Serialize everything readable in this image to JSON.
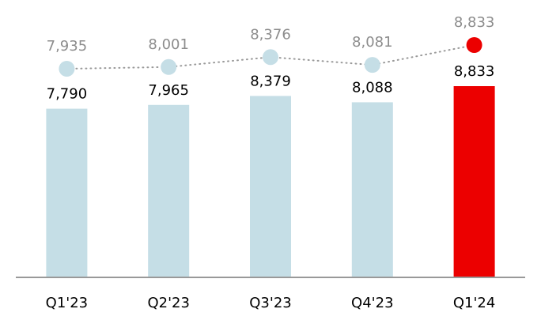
{
  "chart_data": {
    "type": "bar-line",
    "categories": [
      "Q1'23",
      "Q2'23",
      "Q3'23",
      "Q4'23",
      "Q1'24"
    ],
    "series": [
      {
        "type": "bar",
        "values": [
          7790,
          7965,
          8379,
          8088,
          8833
        ],
        "value_labels": [
          "7,790",
          "7,965",
          "8,379",
          "8,088",
          "8,833"
        ],
        "colors": [
          "#c5dee6",
          "#c5dee6",
          "#c5dee6",
          "#c5dee6",
          "#ec0000"
        ]
      },
      {
        "type": "line",
        "values": [
          7935,
          8001,
          8376,
          8081,
          8833
        ],
        "value_labels": [
          "7,935",
          "8,001",
          "8,376",
          "8,081",
          "8,833"
        ],
        "colors": [
          "#c5dee6",
          "#c5dee6",
          "#c5dee6",
          "#c5dee6",
          "#ec0000"
        ],
        "line_color": "#999999"
      }
    ]
  }
}
